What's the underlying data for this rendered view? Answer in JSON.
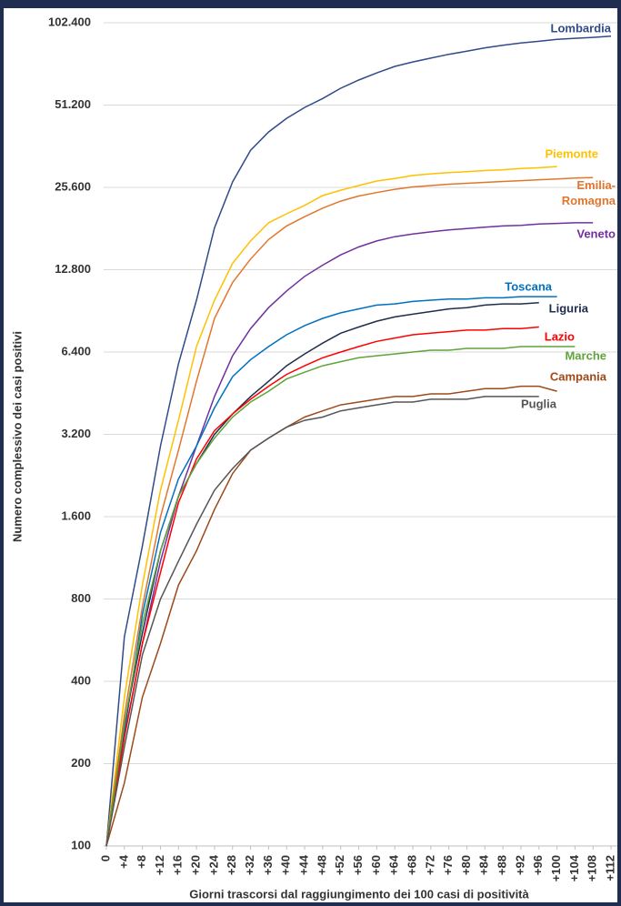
{
  "chart_data": {
    "type": "line",
    "ylabel": "Numero complessivo dei casi positivi",
    "xlabel": "Giorni trascorsi dal raggiungimento dei 100 casi di positività",
    "log_y": true,
    "grid": true,
    "xlim": [
      0,
      113
    ],
    "ylim": [
      100,
      102400
    ],
    "xticks": [
      0,
      {
        "value": 4,
        "label": "+4"
      },
      {
        "value": 8,
        "label": "+8"
      },
      {
        "value": 12,
        "label": "+12"
      },
      {
        "value": 16,
        "label": "+16"
      },
      {
        "value": 20,
        "label": "+20"
      },
      {
        "value": 24,
        "label": "+24"
      },
      {
        "value": 28,
        "label": "+28"
      },
      {
        "value": 32,
        "label": "+32"
      },
      {
        "value": 36,
        "label": "+36"
      },
      {
        "value": 40,
        "label": "+40"
      },
      {
        "value": 44,
        "label": "+44"
      },
      {
        "value": 48,
        "label": "+48"
      },
      {
        "value": 52,
        "label": "+52"
      },
      {
        "value": 56,
        "label": "+56"
      },
      {
        "value": 60,
        "label": "+60"
      },
      {
        "value": 64,
        "label": "+64"
      },
      {
        "value": 68,
        "label": "+68"
      },
      {
        "value": 72,
        "label": "+72"
      },
      {
        "value": 76,
        "label": "+76"
      },
      {
        "value": 80,
        "label": "+80"
      },
      {
        "value": 84,
        "label": "+84"
      },
      {
        "value": 88,
        "label": "+88"
      },
      {
        "value": 92,
        "label": "+92"
      },
      {
        "value": 96,
        "label": "+96"
      },
      {
        "value": 100,
        "label": "+100"
      },
      {
        "value": 104,
        "label": "+104"
      },
      {
        "value": 108,
        "label": "+108"
      },
      {
        "value": 112,
        "label": "+112"
      }
    ],
    "yticks": [
      100,
      200,
      400,
      800,
      {
        "value": 1600,
        "label": "1.600"
      },
      {
        "value": 3200,
        "label": "3.200"
      },
      {
        "value": 6400,
        "label": "6.400"
      },
      {
        "value": 12800,
        "label": "12.800"
      },
      {
        "value": 25600,
        "label": "25.600"
      },
      {
        "value": 51200,
        "label": "51.200"
      },
      {
        "value": 102400,
        "label": "102.400"
      }
    ],
    "x": [
      0,
      4,
      8,
      12,
      16,
      20,
      24,
      28,
      32,
      36,
      40,
      44,
      48,
      52,
      56,
      60,
      64,
      68,
      72,
      76,
      80,
      84,
      88,
      92,
      96,
      100,
      104,
      108,
      112
    ],
    "series": [
      {
        "name": "Lombardia",
        "color": "#2f4b8a",
        "values": [
          100,
          582,
          1250,
          2900,
          5800,
          9900,
          18200,
          26800,
          35000,
          40800,
          45800,
          50200,
          54100,
          59000,
          63200,
          67100,
          70900,
          73600,
          76000,
          78500,
          80600,
          82900,
          84700,
          86300,
          87600,
          89100,
          89800,
          90500,
          91400
        ]
      },
      {
        "name": "Piemonte",
        "color": "#ffc000",
        "values": [
          100,
          350,
          900,
          2000,
          3600,
          6700,
          9900,
          13500,
          16300,
          19000,
          20500,
          22000,
          23900,
          25000,
          26000,
          27000,
          27600,
          28300,
          28700,
          29000,
          29200,
          29500,
          29700,
          30000,
          30200,
          30500,
          null,
          null,
          null
        ]
      },
      {
        "name": "Emilia-Romagna",
        "color": "#e2762e",
        "values": [
          100,
          300,
          750,
          1600,
          2800,
          5000,
          8500,
          11500,
          14000,
          16500,
          18500,
          20000,
          21500,
          22800,
          23800,
          24500,
          25200,
          25700,
          26000,
          26300,
          26500,
          26700,
          26900,
          27100,
          27300,
          27500,
          27700,
          27800,
          null
        ]
      },
      {
        "name": "Veneto",
        "color": "#7030a0",
        "values": [
          100,
          250,
          550,
          1100,
          1900,
          2900,
          4400,
          6200,
          7800,
          9300,
          10700,
          12100,
          13300,
          14500,
          15500,
          16300,
          16900,
          17300,
          17600,
          17900,
          18100,
          18300,
          18500,
          18600,
          18800,
          18900,
          19000,
          19000,
          null
        ]
      },
      {
        "name": "Toscana",
        "color": "#0070c0",
        "values": [
          100,
          260,
          700,
          1400,
          2200,
          2900,
          4000,
          5200,
          6000,
          6700,
          7400,
          8000,
          8500,
          8900,
          9200,
          9500,
          9600,
          9800,
          9900,
          10000,
          10000,
          10100,
          10100,
          10200,
          10200,
          10200,
          null,
          null,
          null
        ]
      },
      {
        "name": "Liguria",
        "color": "#1f2d4d",
        "values": [
          100,
          280,
          600,
          1200,
          1900,
          2500,
          3200,
          3800,
          4400,
          5000,
          5700,
          6300,
          6900,
          7500,
          7900,
          8300,
          8600,
          8800,
          9000,
          9200,
          9300,
          9500,
          9600,
          9600,
          9700,
          null,
          null,
          null,
          null
        ]
      },
      {
        "name": "Lazio",
        "color": "#ff0000",
        "values": [
          100,
          250,
          550,
          1000,
          1800,
          2600,
          3300,
          3800,
          4300,
          4800,
          5300,
          5700,
          6100,
          6400,
          6700,
          7000,
          7200,
          7400,
          7500,
          7600,
          7700,
          7700,
          7800,
          7800,
          7900,
          null,
          null,
          null,
          null
        ]
      },
      {
        "name": "Marche",
        "color": "#5fa33a",
        "values": [
          100,
          280,
          650,
          1200,
          1900,
          2500,
          3100,
          3700,
          4200,
          4600,
          5100,
          5400,
          5700,
          5900,
          6100,
          6200,
          6300,
          6400,
          6500,
          6500,
          6600,
          6600,
          6600,
          6700,
          6700,
          6700,
          6700,
          null,
          null
        ]
      },
      {
        "name": "Campania",
        "color": "#9c4a1a",
        "values": [
          100,
          170,
          350,
          550,
          900,
          1200,
          1700,
          2300,
          2800,
          3100,
          3400,
          3700,
          3900,
          4100,
          4200,
          4300,
          4400,
          4400,
          4500,
          4500,
          4600,
          4700,
          4700,
          4800,
          4800,
          4600,
          null,
          null,
          null
        ]
      },
      {
        "name": "Puglia",
        "color": "#555555",
        "values": [
          100,
          230,
          500,
          800,
          1100,
          1500,
          2000,
          2400,
          2800,
          3100,
          3400,
          3600,
          3700,
          3900,
          4000,
          4100,
          4200,
          4200,
          4300,
          4300,
          4300,
          4400,
          4400,
          4400,
          4400,
          null,
          null,
          null,
          null
        ]
      }
    ]
  }
}
